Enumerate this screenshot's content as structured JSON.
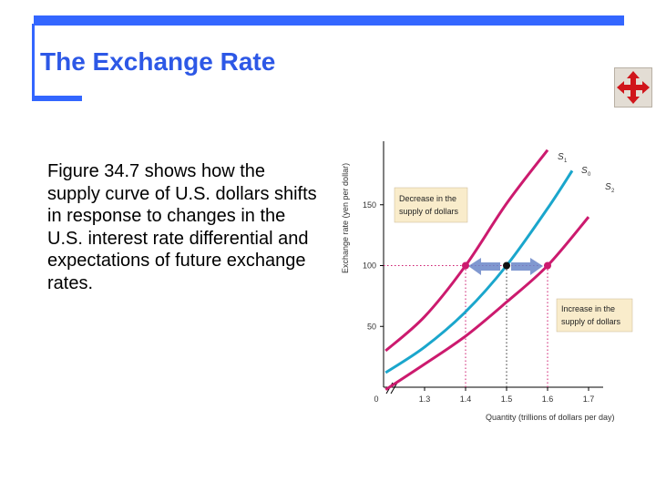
{
  "slide": {
    "title": "The Exchange Rate",
    "body": "Figure 34.7 shows how the supply curve of U.S. dollars shifts in response to changes in the U.S. interest rate differential and expectations of future exchange rates.",
    "move_icon": "four-way-arrow-icon"
  },
  "colors": {
    "accent": "#3366ff",
    "title": "#2d58e6",
    "s0": "#1aa6cc",
    "s1": "#cc1a6e",
    "s2": "#cc1a6e",
    "arrow": "#6a86c8",
    "annotation_box": "#f9eccb"
  },
  "chart_data": {
    "type": "line",
    "xlabel": "Quantity (trillions of dollars per day)",
    "ylabel": "Exchange rate (yen per dollar)",
    "x_ticks": [
      "0",
      "1.3",
      "1.4",
      "1.5",
      "1.6",
      "1.7"
    ],
    "y_ticks": [
      "50",
      "100",
      "150"
    ],
    "xlim": [
      1.2,
      1.75
    ],
    "ylim": [
      0,
      180
    ],
    "grid": false,
    "series": [
      {
        "name": "S1",
        "x": [
          1.205,
          1.3,
          1.4,
          1.5,
          1.6
        ],
        "y": [
          30,
          58,
          100,
          151,
          195
        ]
      },
      {
        "name": "S0",
        "x": [
          1.205,
          1.3,
          1.4,
          1.5,
          1.6,
          1.66
        ],
        "y": [
          12,
          33,
          62,
          100,
          147,
          178
        ]
      },
      {
        "name": "S2",
        "x": [
          1.205,
          1.3,
          1.4,
          1.5,
          1.6,
          1.7
        ],
        "y": [
          -2,
          19,
          42,
          70,
          100,
          140
        ]
      }
    ],
    "points": [
      {
        "series": "S1",
        "x": 1.4,
        "y": 100
      },
      {
        "series": "S0",
        "x": 1.5,
        "y": 100
      },
      {
        "series": "S2",
        "x": 1.6,
        "y": 100
      }
    ],
    "annotations": [
      {
        "text_lines": [
          "Decrease in the",
          "supply of dollars"
        ]
      },
      {
        "text_lines": [
          "Increase in the",
          "supply of dollars"
        ]
      }
    ]
  }
}
